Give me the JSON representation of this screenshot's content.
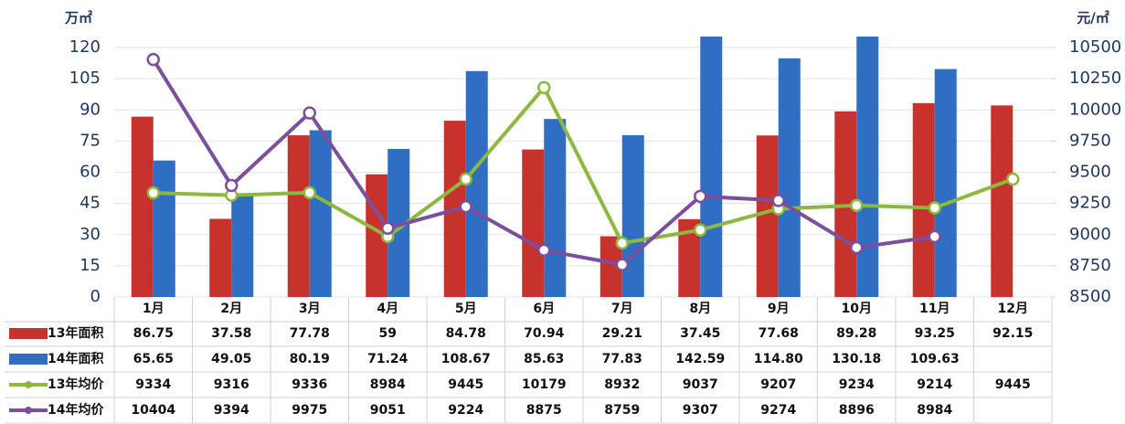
{
  "chart_data": {
    "type": "bar",
    "ylabel": "万㎡",
    "y2label": "元/㎡",
    "categories": [
      "1月",
      "2月",
      "3月",
      "4月",
      "5月",
      "6月",
      "7月",
      "8月",
      "9月",
      "10月",
      "11月",
      "12月"
    ],
    "series": [
      {
        "name": "13年面积",
        "type": "bar",
        "color": "#c8322d",
        "values": [
          86.75,
          37.58,
          77.78,
          59,
          84.78,
          70.94,
          29.21,
          37.45,
          77.68,
          89.28,
          93.25,
          92.15
        ]
      },
      {
        "name": "14年面积",
        "type": "bar",
        "color": "#2f6ec2",
        "values": [
          65.65,
          49.05,
          80.19,
          71.24,
          108.67,
          85.63,
          77.83,
          142.59,
          114.8,
          130.18,
          109.63,
          null
        ],
        "value_labels": [
          "65.65",
          "49.05",
          "80.19",
          "71.24",
          "108.67",
          "85.63",
          "77.83",
          "142.59",
          "114.80",
          "130.18",
          "109.63",
          null
        ]
      },
      {
        "name": "13年均价",
        "type": "line",
        "axis": "y2",
        "color": "#8db83f",
        "values": [
          9334,
          9316,
          9336,
          8984,
          9445,
          10179,
          8932,
          9037,
          9207,
          9234,
          9214,
          9445
        ]
      },
      {
        "name": "14年均价",
        "type": "line",
        "axis": "y2",
        "color": "#7b4f9e",
        "values": [
          10404,
          9394,
          9975,
          9051,
          9224,
          8875,
          8759,
          9307,
          9274,
          8896,
          8984,
          null
        ]
      }
    ],
    "ylim": [
      0,
      120
    ],
    "yticks": [
      0,
      15,
      30,
      45,
      60,
      75,
      90,
      105,
      120
    ],
    "y2lim": [
      8500,
      10500
    ],
    "y2ticks": [
      8500,
      8750,
      9000,
      9250,
      9500,
      9750,
      10000,
      10250,
      10500
    ],
    "grid": true
  }
}
